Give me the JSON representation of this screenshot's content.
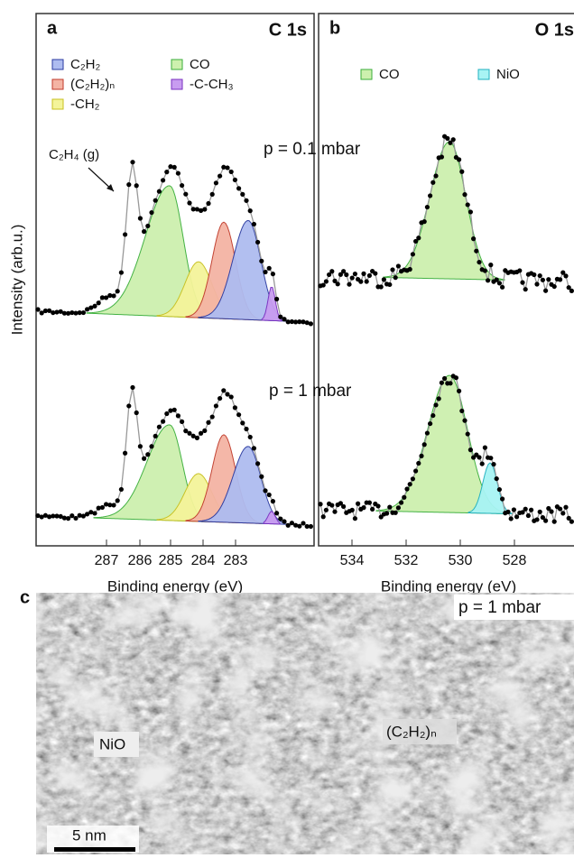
{
  "ylabel": "Intensity (arb.u.)",
  "panel_a": {
    "label": "a",
    "title": "C 1s",
    "legend": [
      "C₂H₂",
      "(C₂H₂)ₙ",
      "-CH₂",
      "CO",
      "-C-CH₃"
    ],
    "annotation": "C₂H₄ (g)",
    "pressure_labels": [
      "p = 0.1 mbar",
      "p = 1 mbar"
    ],
    "xticks": [
      "287",
      "286",
      "285",
      "284",
      "283"
    ],
    "xlabel": "Binding energy (eV)"
  },
  "panel_b": {
    "label": "b",
    "title": "O 1s",
    "legend": [
      "CO",
      "NiO"
    ],
    "xticks": [
      "534",
      "532",
      "530",
      "528"
    ],
    "xlabel": "Binding energy (eV)"
  },
  "panel_c": {
    "label": "c",
    "pressure_label": "p = 1 mbar",
    "labels": [
      "NiO",
      "(C₂H₂)ₙ"
    ],
    "scale_bar": "5 nm"
  }
}
